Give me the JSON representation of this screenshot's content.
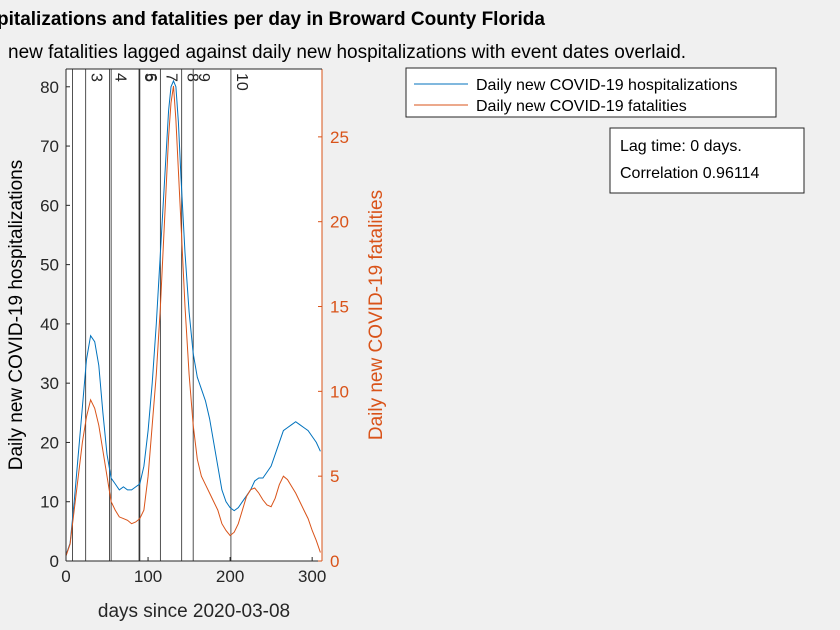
{
  "colors": {
    "background": "#f0f0f0",
    "hospitalizations": "#0072bd",
    "fatalities": "#d95319",
    "event_line": "#262626"
  },
  "chart_data": {
    "type": "line",
    "title": "pitalizations and fatalities per day in Broward County Florida",
    "subtitle": "new fatalities lagged against daily new hospitalizations with event dates overlaid.",
    "xlabel": "days since 2020-03-08",
    "ylabel_left": "Daily new COVID-19 hospitalizations",
    "ylabel_right": "Daily new COVID-19 fatalities",
    "xlim": [
      0,
      312
    ],
    "ylim_left": [
      0,
      83
    ],
    "ylim_right": [
      0,
      29
    ],
    "xticks": [
      0,
      100,
      200,
      300
    ],
    "yticks_left": [
      0,
      10,
      20,
      30,
      40,
      50,
      60,
      70,
      80
    ],
    "yticks_right": [
      0,
      5,
      10,
      15,
      20,
      25
    ],
    "grid": false,
    "legend_position": "top-right",
    "series": [
      {
        "name": "Daily new COVID-19 hospitalizations",
        "axis": "left",
        "x": [
          0,
          5,
          10,
          15,
          20,
          25,
          30,
          35,
          40,
          45,
          50,
          55,
          60,
          65,
          70,
          75,
          80,
          85,
          90,
          95,
          100,
          105,
          110,
          115,
          120,
          125,
          128,
          131,
          134,
          137,
          140,
          145,
          150,
          155,
          160,
          165,
          170,
          175,
          180,
          185,
          190,
          195,
          200,
          205,
          210,
          215,
          220,
          225,
          230,
          235,
          240,
          245,
          250,
          255,
          260,
          265,
          270,
          275,
          280,
          285,
          290,
          295,
          300,
          305,
          310
        ],
        "values": [
          1,
          3,
          10,
          18,
          26,
          34,
          38,
          37,
          33,
          25,
          18,
          14,
          13,
          12,
          12.5,
          12,
          12,
          12.5,
          13,
          16,
          22,
          30,
          40,
          52,
          64,
          76,
          80,
          81,
          80,
          74,
          65,
          52,
          42,
          35,
          31,
          29,
          27,
          24,
          20,
          16,
          12,
          10,
          9,
          8.5,
          9,
          10,
          11,
          12,
          13.5,
          14,
          14,
          15,
          16,
          18,
          20,
          22,
          22.5,
          23,
          23.5,
          23,
          22.5,
          22,
          21,
          20,
          18.5
        ]
      },
      {
        "name": "Daily new COVID-19 fatalities",
        "axis": "right",
        "x": [
          0,
          5,
          10,
          15,
          20,
          25,
          30,
          35,
          40,
          45,
          50,
          55,
          60,
          65,
          70,
          75,
          80,
          85,
          90,
          95,
          100,
          105,
          110,
          115,
          120,
          125,
          128,
          131,
          134,
          137,
          140,
          145,
          150,
          155,
          160,
          165,
          170,
          175,
          180,
          185,
          190,
          195,
          200,
          205,
          210,
          215,
          220,
          225,
          230,
          235,
          240,
          245,
          250,
          255,
          260,
          265,
          270,
          275,
          280,
          285,
          290,
          295,
          300,
          305,
          310
        ],
        "values": [
          0.3,
          1,
          3,
          5,
          7,
          8.5,
          9.5,
          9,
          8,
          6.5,
          5,
          3.5,
          3,
          2.6,
          2.5,
          2.4,
          2.2,
          2.3,
          2.5,
          3,
          5,
          8,
          11,
          15,
          20,
          25,
          27,
          28,
          26,
          23,
          20,
          15,
          11,
          8,
          6,
          5,
          4.5,
          4,
          3.5,
          3,
          2.2,
          1.8,
          1.5,
          1.7,
          2.2,
          3,
          3.8,
          4.2,
          4.3,
          4,
          3.6,
          3.3,
          3.2,
          3.7,
          4.5,
          5,
          4.8,
          4.4,
          4,
          3.5,
          3,
          2.5,
          1.8,
          1.2,
          0.5
        ]
      }
    ],
    "events": [
      {
        "x": 8,
        "label": ""
      },
      {
        "x": 24,
        "label": "3"
      },
      {
        "x": 53,
        "label": "4"
      },
      {
        "x": 55,
        "label": ""
      },
      {
        "x": 89,
        "label": "5"
      },
      {
        "x": 90,
        "label": "6"
      },
      {
        "x": 115,
        "label": "7"
      },
      {
        "x": 141,
        "label": "8"
      },
      {
        "x": 155,
        "label": "9"
      },
      {
        "x": 201,
        "label": "10"
      }
    ],
    "legend": [
      "Daily new COVID-19 hospitalizations",
      "Daily new COVID-19 fatalities"
    ],
    "annotation": {
      "line1": "Lag time: 0 days.",
      "line2": "Correlation 0.96114"
    }
  }
}
